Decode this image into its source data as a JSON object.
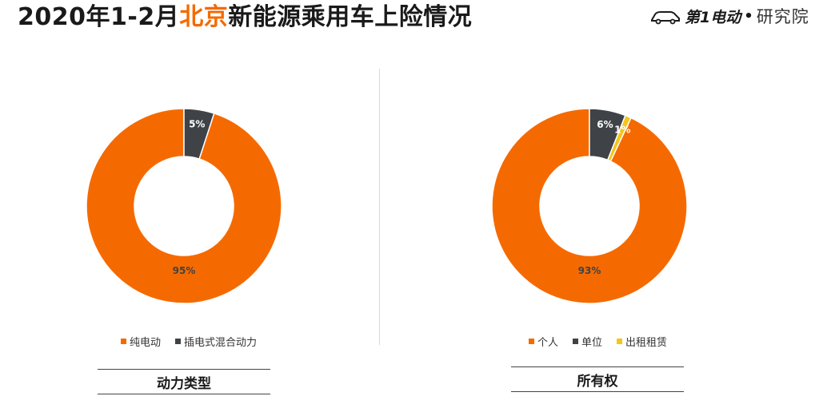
{
  "header": {
    "title_part1": "2020年1-2月",
    "title_highlight": "北京",
    "title_part2": "新能源乘用车上险情况"
  },
  "logo": {
    "brand": "第1电动",
    "separator": "•",
    "suffix": "研究院"
  },
  "colors": {
    "orange": "#f56a00",
    "gray": "#3f4347",
    "yellow": "#f5c518",
    "highlight": "#f56a00"
  },
  "chart_data": [
    {
      "type": "pie",
      "donut": true,
      "caption": "动力类型",
      "categories": [
        "纯电动",
        "插电式混合动力"
      ],
      "values": [
        95,
        5
      ],
      "labels": [
        "95%",
        "5%"
      ],
      "legend_position": "bottom"
    },
    {
      "type": "pie",
      "donut": true,
      "caption": "所有权",
      "categories": [
        "个人",
        "单位",
        "出租租赁"
      ],
      "values": [
        93,
        6,
        1
      ],
      "labels": [
        "93%",
        "6%",
        "1%"
      ],
      "legend_position": "bottom"
    }
  ]
}
